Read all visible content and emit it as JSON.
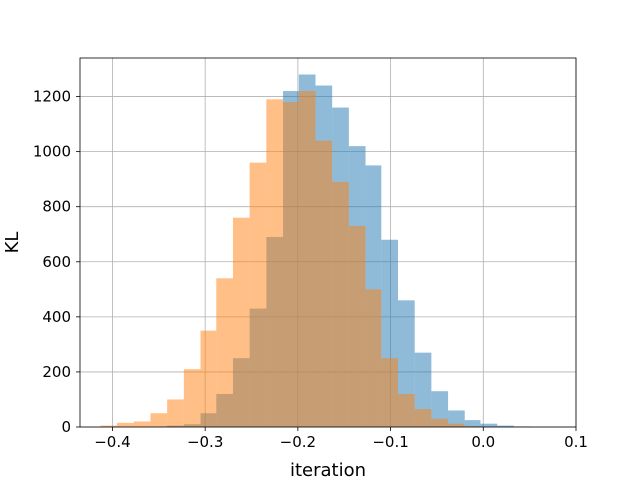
{
  "chart_data": {
    "type": "histogram",
    "title": "",
    "xlabel": "iteration",
    "ylabel": "KL",
    "xlim": [
      -0.435,
      0.1
    ],
    "ylim": [
      0,
      1340
    ],
    "xticks": [
      -0.4,
      -0.3,
      -0.2,
      -0.1,
      0.0,
      0.1
    ],
    "xtick_labels": [
      "−0.4",
      "−0.3",
      "−0.2",
      "−0.1",
      "0.0",
      "0.1"
    ],
    "yticks": [
      0,
      200,
      400,
      600,
      800,
      1000,
      1200
    ],
    "ytick_labels": [
      "0",
      "200",
      "400",
      "600",
      "800",
      "1000",
      "1200"
    ],
    "grid": true,
    "legend": false,
    "series": [
      {
        "color": "#1f77b4",
        "opacity": 0.5,
        "bin_edges": [
          -0.341,
          -0.323,
          -0.305,
          -0.288,
          -0.27,
          -0.252,
          -0.234,
          -0.216,
          -0.199,
          -0.181,
          -0.163,
          -0.145,
          -0.127,
          -0.11,
          -0.092,
          -0.074,
          -0.056,
          -0.038,
          -0.02,
          -0.003,
          0.015,
          0.033,
          0.051
        ],
        "counts": [
          5,
          10,
          50,
          120,
          250,
          430,
          690,
          1220,
          1280,
          1240,
          1160,
          1020,
          950,
          680,
          460,
          270,
          130,
          60,
          25,
          12,
          5,
          2
        ]
      },
      {
        "color": "#ff7f0e",
        "opacity": 0.5,
        "bin_edges": [
          -0.413,
          -0.395,
          -0.377,
          -0.359,
          -0.341,
          -0.323,
          -0.305,
          -0.288,
          -0.27,
          -0.252,
          -0.234,
          -0.216,
          -0.199,
          -0.181,
          -0.163,
          -0.145,
          -0.127,
          -0.11,
          -0.092,
          -0.074,
          -0.056,
          -0.038,
          -0.02,
          -0.003
        ],
        "counts": [
          5,
          15,
          20,
          50,
          100,
          210,
          350,
          540,
          760,
          960,
          1190,
          1180,
          1220,
          1040,
          890,
          730,
          500,
          250,
          120,
          65,
          30,
          12,
          3
        ]
      }
    ]
  }
}
